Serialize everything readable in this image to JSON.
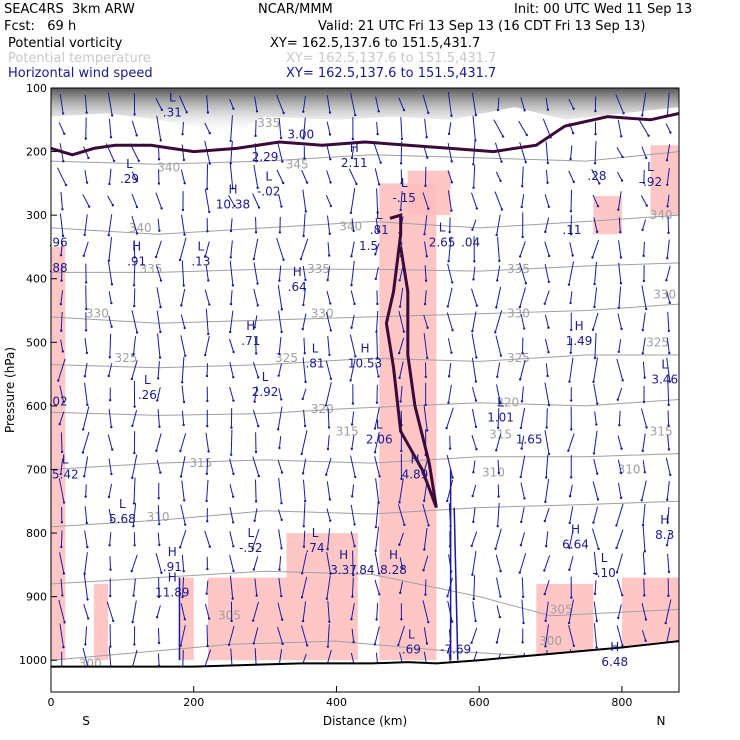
{
  "header": {
    "model": "SEAC4RS  3km ARW",
    "org": "NCAR/MMM",
    "init": "Init: 00 UTC Wed 11 Sep 13",
    "fcst": "Fcst:   69 h",
    "valid": "Valid: 21 UTC Fri 13 Sep 13 (16 CDT Fri 13 Sep 13)",
    "fields": [
      {
        "name": "Potential vorticity",
        "xy": "XY= 162.5,137.6 to 151.5,431.7",
        "color": "#000000"
      },
      {
        "name": "Potential temperature",
        "xy": "XY= 162.5,137.6 to 151.5,431.7",
        "color": "#c8c8c8"
      },
      {
        "name": "Horizontal wind speed",
        "xy": "XY= 162.5,137.6 to 151.5,431.7",
        "color": "#1a1a8c"
      }
    ]
  },
  "chart_data": {
    "type": "cross-section",
    "xlabel": "Distance (km)",
    "ylabel": "Pressure (hPa)",
    "xlim": [
      0,
      880
    ],
    "ylim": [
      1050,
      100
    ],
    "xticks": [
      0,
      200,
      400,
      600,
      800
    ],
    "yticks": [
      100,
      200,
      300,
      400,
      500,
      600,
      700,
      800,
      900,
      1000
    ],
    "x_end_labels": {
      "left": "S",
      "right": "N"
    },
    "colors": {
      "pv_shade": "#ffbcbc",
      "pv_contour": "#3a0a3a",
      "theta": "#a0a0a0",
      "wind": "#1a1aa0",
      "terrain": "#000000"
    },
    "theta_contours": [
      {
        "value": "315",
        "points": [
          [
            0,
            700
          ],
          [
            150,
            690
          ],
          [
            300,
            685
          ],
          [
            450,
            690
          ],
          [
            600,
            680
          ],
          [
            750,
            680
          ],
          [
            880,
            675
          ]
        ]
      },
      {
        "value": "320",
        "points": [
          [
            0,
            610
          ],
          [
            150,
            615
          ],
          [
            300,
            612
          ],
          [
            400,
            605
          ],
          [
            500,
            600
          ],
          [
            600,
            595
          ],
          [
            750,
            600
          ],
          [
            880,
            590
          ]
        ]
      },
      {
        "value": "325",
        "points": [
          [
            0,
            535
          ],
          [
            150,
            540
          ],
          [
            300,
            535
          ],
          [
            450,
            525
          ],
          [
            600,
            530
          ],
          [
            750,
            520
          ],
          [
            880,
            520
          ]
        ]
      },
      {
        "value": "330",
        "points": [
          [
            0,
            460
          ],
          [
            150,
            470
          ],
          [
            300,
            465
          ],
          [
            450,
            460
          ],
          [
            600,
            455
          ],
          [
            750,
            450
          ],
          [
            880,
            440
          ]
        ]
      },
      {
        "value": "335",
        "points": [
          [
            0,
            390
          ],
          [
            150,
            390
          ],
          [
            300,
            385
          ],
          [
            450,
            385
          ],
          [
            600,
            388
          ],
          [
            750,
            380
          ],
          [
            880,
            375
          ]
        ]
      },
      {
        "value": "340",
        "points": [
          [
            0,
            320
          ],
          [
            150,
            330
          ],
          [
            300,
            320
          ],
          [
            450,
            310
          ],
          [
            600,
            320
          ],
          [
            750,
            310
          ],
          [
            880,
            300
          ]
        ]
      },
      {
        "value": "345",
        "points": [
          [
            0,
            215
          ],
          [
            150,
            220
          ],
          [
            300,
            215
          ],
          [
            450,
            205
          ],
          [
            600,
            210
          ],
          [
            750,
            215
          ],
          [
            880,
            200
          ]
        ]
      },
      {
        "value": "310",
        "points": [
          [
            0,
            790
          ],
          [
            150,
            780
          ],
          [
            300,
            765
          ],
          [
            450,
            770
          ],
          [
            600,
            760
          ],
          [
            750,
            755
          ],
          [
            880,
            750
          ]
        ]
      },
      {
        "value": "305",
        "points": [
          [
            0,
            880
          ],
          [
            150,
            870
          ],
          [
            300,
            860
          ],
          [
            450,
            865
          ],
          [
            600,
            900
          ],
          [
            700,
            930
          ],
          [
            880,
            920
          ]
        ]
      },
      {
        "value": "300",
        "points": [
          [
            0,
            1000
          ],
          [
            100,
            990
          ],
          [
            250,
            975
          ],
          [
            400,
            970
          ],
          [
            550,
            985
          ],
          [
            700,
            995
          ],
          [
            880,
            990
          ]
        ]
      }
    ],
    "theta_labels": [
      {
        "text": "335",
        "x": 305,
        "p": 155
      },
      {
        "text": "340",
        "x": 165,
        "p": 225
      },
      {
        "text": "345",
        "x": 345,
        "p": 220
      },
      {
        "text": "340",
        "x": 125,
        "p": 320
      },
      {
        "text": "335",
        "x": 140,
        "p": 385
      },
      {
        "text": "340",
        "x": 420,
        "p": 318
      },
      {
        "text": "335",
        "x": 375,
        "p": 385
      },
      {
        "text": "330",
        "x": 380,
        "p": 455
      },
      {
        "text": "325",
        "x": 330,
        "p": 525
      },
      {
        "text": "330",
        "x": 65,
        "p": 455
      },
      {
        "text": "325",
        "x": 105,
        "p": 525
      },
      {
        "text": "320",
        "x": 380,
        "p": 605
      },
      {
        "text": "315",
        "x": 415,
        "p": 640
      },
      {
        "text": "315",
        "x": 210,
        "p": 690
      },
      {
        "text": "310",
        "x": 150,
        "p": 775
      },
      {
        "text": "305",
        "x": 250,
        "p": 930
      },
      {
        "text": "300",
        "x": 55,
        "p": 1005
      },
      {
        "text": "310",
        "x": 620,
        "p": 705
      },
      {
        "text": "320",
        "x": 640,
        "p": 595
      },
      {
        "text": "325",
        "x": 655,
        "p": 525
      },
      {
        "text": "330",
        "x": 655,
        "p": 455
      },
      {
        "text": "335",
        "x": 655,
        "p": 385
      },
      {
        "text": "315",
        "x": 630,
        "p": 645
      },
      {
        "text": "315",
        "x": 855,
        "p": 640
      },
      {
        "text": "310",
        "x": 810,
        "p": 700
      },
      {
        "text": "325",
        "x": 850,
        "p": 500
      },
      {
        "text": "330",
        "x": 860,
        "p": 425
      },
      {
        "text": "340",
        "x": 855,
        "p": 300
      },
      {
        "text": "305",
        "x": 715,
        "p": 920
      },
      {
        "text": "300",
        "x": 700,
        "p": 970
      }
    ],
    "hl_labels": [
      {
        "letter": "L",
        "value": ".31",
        "x": 170,
        "p": 135
      },
      {
        "letter": "",
        "value": "3.00",
        "x": 350,
        "p": 170
      },
      {
        "letter": "",
        "value": "2.29",
        "x": 300,
        "p": 205
      },
      {
        "letter": "H",
        "value": "2.11",
        "x": 425,
        "p": 215
      },
      {
        "letter": "L",
        "value": ".29",
        "x": 110,
        "p": 240
      },
      {
        "letter": "L",
        "value": "-.02",
        "x": 305,
        "p": 260
      },
      {
        "letter": "L",
        "value": "-.15",
        "x": 495,
        "p": 270
      },
      {
        "letter": "H",
        "value": "10.38",
        "x": 255,
        "p": 280
      },
      {
        "letter": "L",
        "value": ".81",
        "x": 460,
        "p": 320
      },
      {
        "letter": "",
        "value": "1.5",
        "x": 445,
        "p": 345
      },
      {
        "letter": "L",
        "value": "2.65",
        "x": 548,
        "p": 340
      },
      {
        "letter": "",
        "value": ".04",
        "x": 588,
        "p": 340
      },
      {
        "letter": "",
        "value": ".11",
        "x": 730,
        "p": 320
      },
      {
        "letter": "H",
        "value": ".91",
        "x": 120,
        "p": 370
      },
      {
        "letter": "L",
        "value": ".13",
        "x": 210,
        "p": 370
      },
      {
        "letter": "H",
        "value": ".64",
        "x": 345,
        "p": 410
      },
      {
        "letter": "H",
        "value": ".71",
        "x": 280,
        "p": 495
      },
      {
        "letter": "L",
        "value": ".81",
        "x": 370,
        "p": 530
      },
      {
        "letter": "H",
        "value": "10.53",
        "x": 440,
        "p": 530
      },
      {
        "letter": "L",
        "value": ".26",
        "x": 135,
        "p": 580
      },
      {
        "letter": "L",
        "value": "2.92",
        "x": 300,
        "p": 575
      },
      {
        "letter": "H",
        "value": "1.49",
        "x": 740,
        "p": 495
      },
      {
        "letter": "L",
        "value": "3.46",
        "x": 860,
        "p": 555
      },
      {
        "letter": "L",
        "value": "1.01",
        "x": 630,
        "p": 615
      },
      {
        "letter": "",
        "value": "1.65",
        "x": 670,
        "p": 650
      },
      {
        "letter": "L",
        "value": "2.06",
        "x": 460,
        "p": 650
      },
      {
        "letter": "H",
        "value": "4.89",
        "x": 510,
        "p": 705
      },
      {
        "letter": "L",
        "value": "5.42",
        "x": 20,
        "p": 705
      },
      {
        "letter": "L",
        "value": "5.68",
        "x": 100,
        "p": 775
      },
      {
        "letter": "L",
        "value": "-.52",
        "x": 280,
        "p": 820
      },
      {
        "letter": "L",
        "value": ".74",
        "x": 370,
        "p": 820
      },
      {
        "letter": "H",
        "value": "3.37",
        "x": 410,
        "p": 855
      },
      {
        "letter": "",
        "value": ".84",
        "x": 440,
        "p": 855
      },
      {
        "letter": "H",
        "value": "8.28",
        "x": 480,
        "p": 855
      },
      {
        "letter": "H",
        "value": "6.64",
        "x": 735,
        "p": 815
      },
      {
        "letter": "H",
        "value": "8.3",
        "x": 860,
        "p": 800
      },
      {
        "letter": "L",
        "value": "-.10",
        "x": 775,
        "p": 860
      },
      {
        "letter": "H",
        "value": ".91",
        "x": 170,
        "p": 850
      },
      {
        "letter": "H",
        "value": "11.89",
        "x": 170,
        "p": 890
      },
      {
        "letter": "L",
        "value": ".69",
        "x": 505,
        "p": 980
      },
      {
        "letter": "",
        "value": "-7.69",
        "x": 567,
        "p": 980
      },
      {
        "letter": "H",
        "value": "6.48",
        "x": 790,
        "p": 1000
      },
      {
        "letter": "",
        "value": ".28",
        "x": 765,
        "p": 235
      },
      {
        "letter": "L",
        "value": "-.92",
        "x": 840,
        "p": 245
      },
      {
        "letter": "",
        "value": ".96",
        "x": 10,
        "p": 340
      },
      {
        "letter": "",
        "value": ".88",
        "x": 10,
        "p": 380
      },
      {
        "letter": "",
        "value": ".02",
        "x": 10,
        "p": 590
      }
    ],
    "pv_shaded_regions": [
      {
        "x": [
          0,
          20
        ],
        "p": [
          350,
          1000
        ]
      },
      {
        "x": [
          60,
          80
        ],
        "p": [
          880,
          1000
        ]
      },
      {
        "x": [
          180,
          200
        ],
        "p": [
          870,
          1000
        ]
      },
      {
        "x": [
          220,
          330
        ],
        "p": [
          870,
          1000
        ]
      },
      {
        "x": [
          330,
          430
        ],
        "p": [
          800,
          1000
        ]
      },
      {
        "x": [
          460,
          540
        ],
        "p": [
          250,
          1000
        ]
      },
      {
        "x": [
          500,
          560
        ],
        "p": [
          230,
          300
        ]
      },
      {
        "x": [
          680,
          760
        ],
        "p": [
          880,
          1000
        ]
      },
      {
        "x": [
          800,
          880
        ],
        "p": [
          870,
          1000
        ]
      },
      {
        "x": [
          840,
          880
        ],
        "p": [
          190,
          300
        ]
      },
      {
        "x": [
          760,
          800
        ],
        "p": [
          270,
          330
        ]
      }
    ],
    "pv_contours": [
      {
        "value": "2",
        "points": [
          [
            0,
            195
          ],
          [
            30,
            205
          ],
          [
            60,
            195
          ],
          [
            90,
            190
          ],
          [
            140,
            190
          ],
          [
            200,
            200
          ],
          [
            260,
            195
          ],
          [
            320,
            185
          ],
          [
            380,
            190
          ],
          [
            440,
            185
          ],
          [
            500,
            190
          ],
          [
            560,
            195
          ],
          [
            620,
            200
          ],
          [
            680,
            190
          ],
          [
            720,
            160
          ],
          [
            780,
            145
          ],
          [
            840,
            150
          ],
          [
            880,
            140
          ]
        ]
      },
      {
        "value": "2",
        "points": [
          [
            475,
            305
          ],
          [
            490,
            300
          ],
          [
            490,
            330
          ],
          [
            480,
            420
          ],
          [
            470,
            470
          ],
          [
            480,
            540
          ],
          [
            490,
            640
          ],
          [
            520,
            700
          ],
          [
            540,
            760
          ],
          [
            530,
            690
          ],
          [
            510,
            600
          ],
          [
            500,
            520
          ],
          [
            500,
            420
          ],
          [
            490,
            350
          ]
        ]
      }
    ],
    "terrain": [
      [
        0,
        1010
      ],
      [
        200,
        1010
      ],
      [
        350,
        1005
      ],
      [
        450,
        1005
      ],
      [
        500,
        1003
      ],
      [
        540,
        1005
      ],
      [
        600,
        1000
      ],
      [
        650,
        995
      ],
      [
        700,
        990
      ],
      [
        750,
        985
      ],
      [
        800,
        980
      ],
      [
        840,
        975
      ],
      [
        880,
        970
      ]
    ]
  }
}
